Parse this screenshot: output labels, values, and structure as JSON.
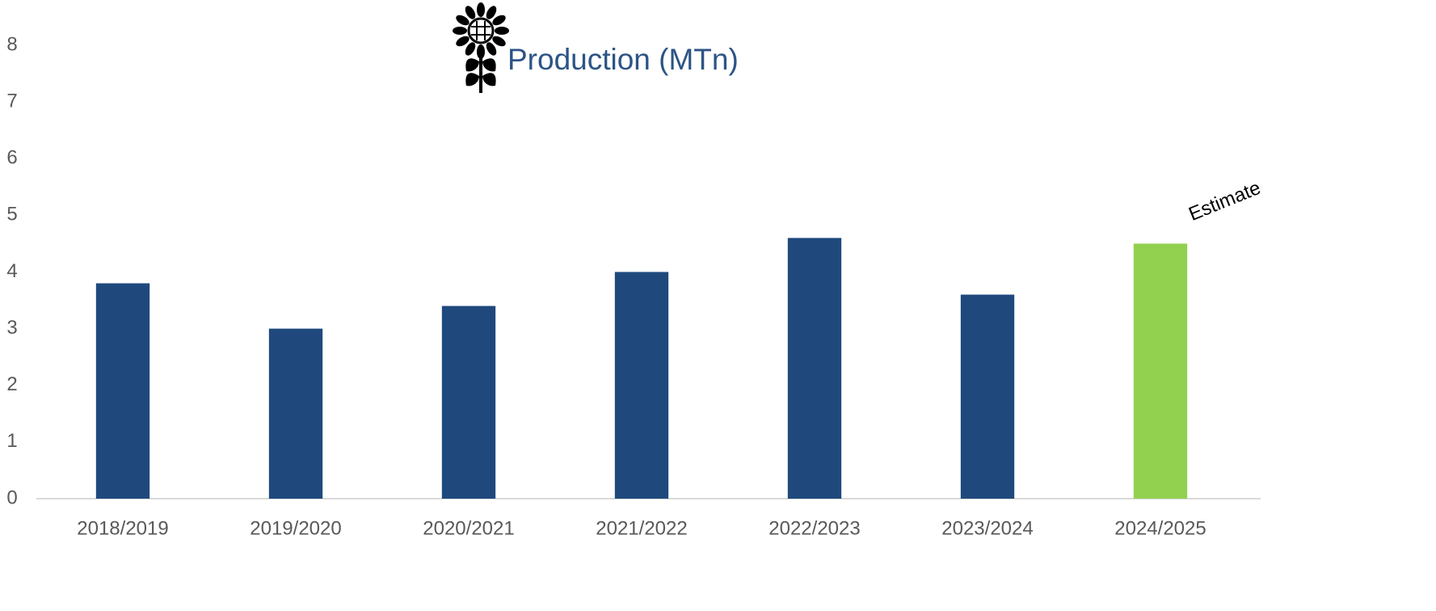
{
  "chart_data": {
    "type": "bar",
    "title": "Production (MTn)",
    "categories": [
      "2018/2019",
      "2019/2020",
      "2020/2021",
      "2021/2022",
      "2022/2023",
      "2023/2024",
      "2024/2025"
    ],
    "values": [
      3.8,
      3.0,
      3.4,
      4.0,
      4.6,
      3.6,
      4.5
    ],
    "colors": [
      "#1f497d",
      "#1f497d",
      "#1f497d",
      "#1f497d",
      "#1f497d",
      "#1f497d",
      "#92d050"
    ],
    "annotation": "Estimate",
    "ylim": [
      0,
      8
    ],
    "yticks": [
      0,
      1,
      2,
      3,
      4,
      5,
      6,
      7,
      8
    ],
    "grid": false
  }
}
